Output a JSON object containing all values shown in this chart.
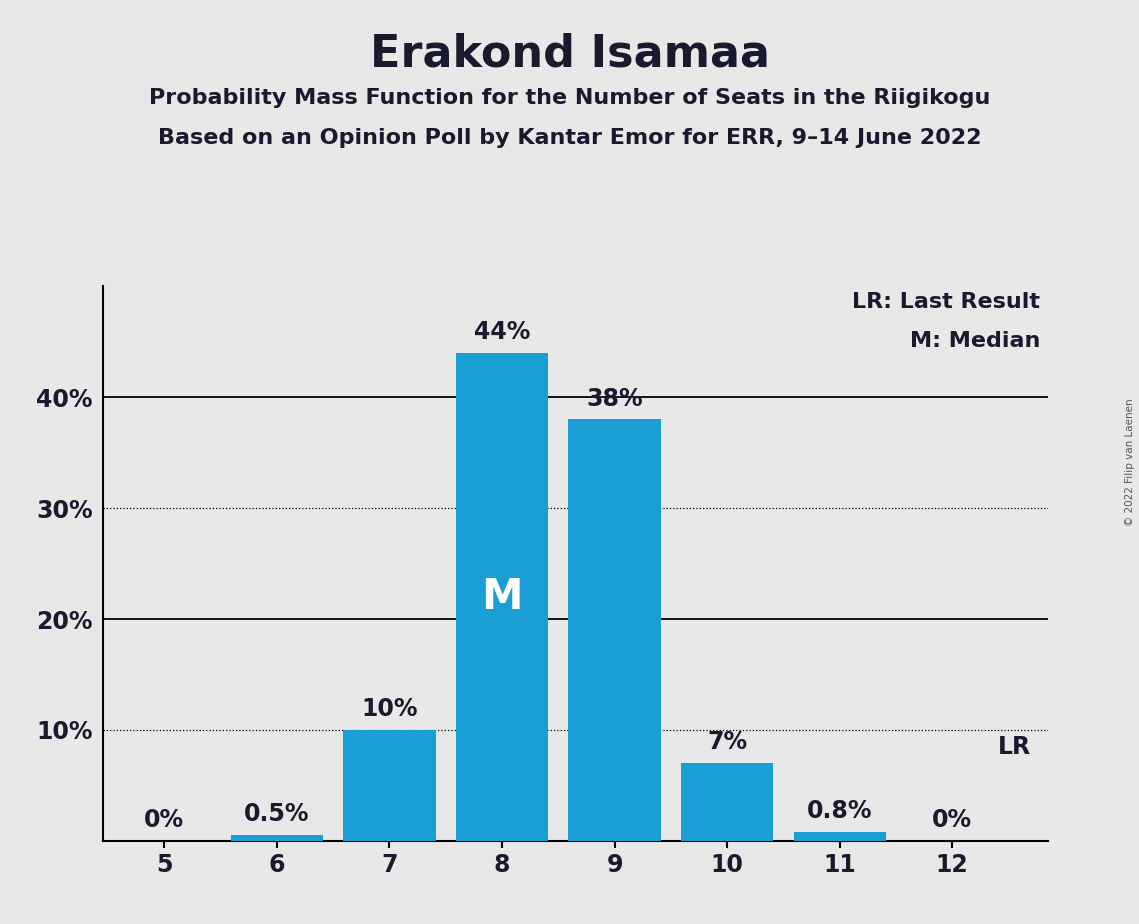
{
  "title": "Erakond Isamaa",
  "subtitle1": "Probability Mass Function for the Number of Seats in the Riigikogu",
  "subtitle2": "Based on an Opinion Poll by Kantar Emor for ERR, 9–14 June 2022",
  "copyright": "© 2022 Filip van Laenen",
  "categories": [
    5,
    6,
    7,
    8,
    9,
    10,
    11,
    12
  ],
  "values": [
    0.0,
    0.5,
    10.0,
    44.0,
    38.0,
    7.0,
    0.8,
    0.0
  ],
  "bar_color": "#1a9fd4",
  "bar_labels": [
    "0%",
    "0.5%",
    "10%",
    "44%",
    "38%",
    "7%",
    "0.8%",
    "0%"
  ],
  "median_bar": 8,
  "median_label": "M",
  "lr_bar": 12,
  "lr_label": "LR",
  "legend_lr": "LR: Last Result",
  "legend_m": "M: Median",
  "ylim": [
    0,
    50
  ],
  "dotted_lines": [
    10,
    30
  ],
  "solid_lines": [
    20,
    40
  ],
  "background_color": "#e8e8e8",
  "title_fontsize": 32,
  "subtitle_fontsize": 16,
  "bar_label_fontsize": 17,
  "axis_tick_fontsize": 17,
  "legend_fontsize": 16,
  "median_label_fontsize": 30,
  "text_color": "#1a1a2e"
}
